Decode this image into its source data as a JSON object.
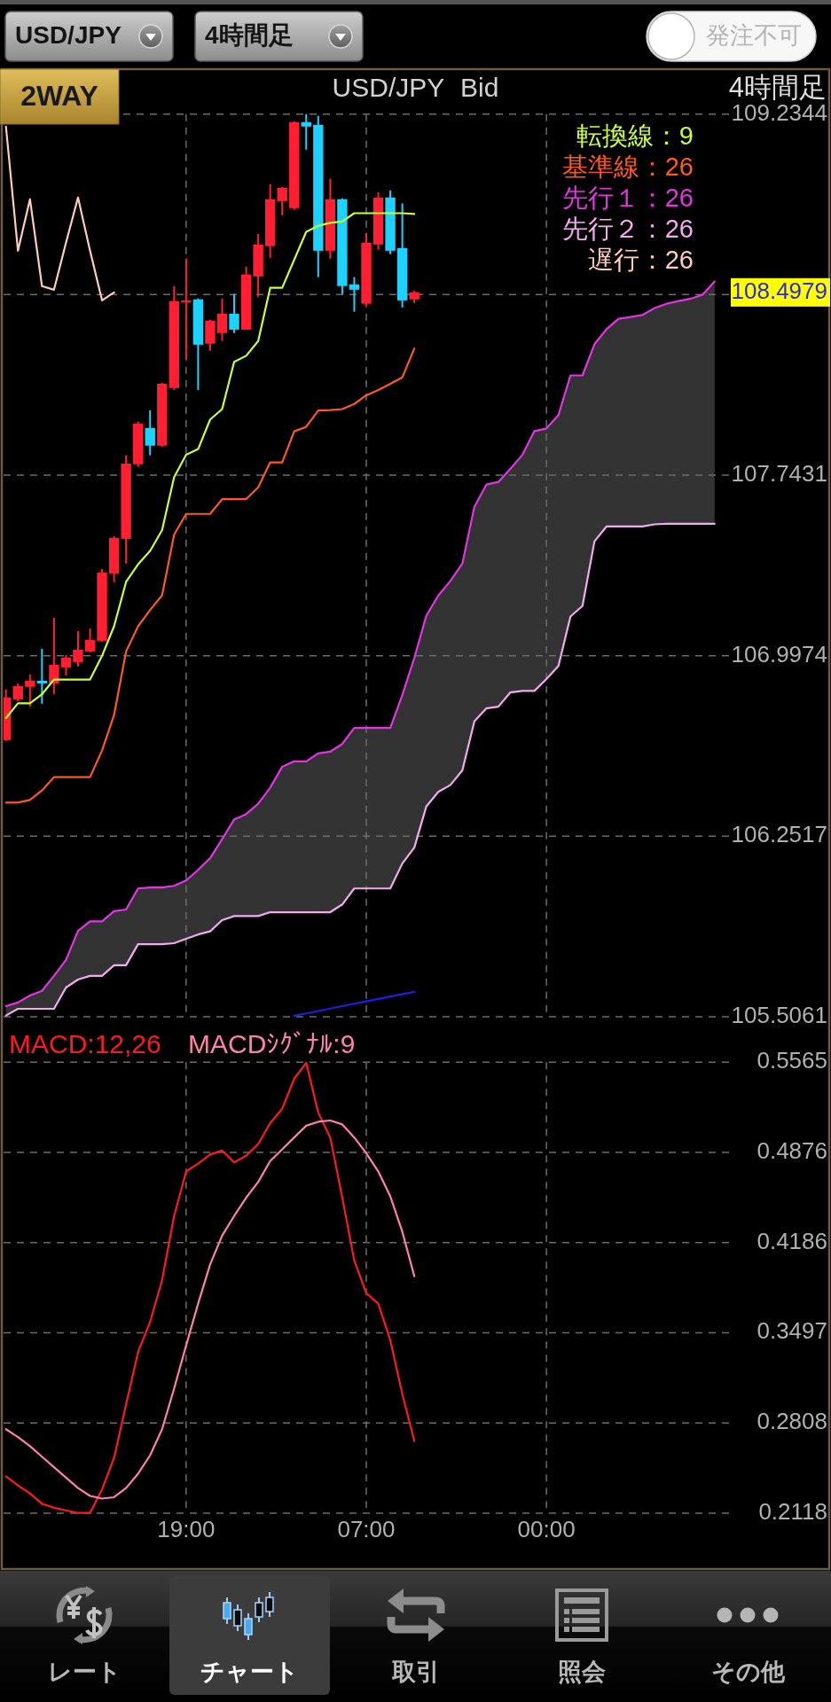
{
  "chart_data": [
    {
      "type": "other",
      "annotations": [
        "USD/JPY",
        "4時間足",
        "発注不可",
        "2WAY"
      ]
    },
    {
      "type": "candlestick",
      "title": "USD/JPY Bid",
      "subtitle": "4時間足",
      "categories": [
        null,
        null,
        null,
        null,
        null,
        null,
        null,
        null,
        null,
        null,
        null,
        null,
        null,
        null,
        null,
        null,
        null,
        null,
        null,
        null,
        null,
        null,
        null,
        null,
        null,
        null,
        null,
        null,
        null,
        null,
        null,
        null,
        null,
        null,
        null,
        null,
        null,
        null,
        null,
        null,
        null,
        null,
        null,
        null,
        null,
        null,
        null,
        null,
        null,
        null,
        null,
        null,
        null,
        null,
        null,
        null,
        null,
        null,
        null,
        null,
        null
      ],
      "ylim": [
        105.5061,
        109.2344
      ],
      "yticks": [
        105.5061,
        106.2517,
        106.9974,
        107.7431,
        {
          "value": 108.4887,
          "label": null
        },
        109.2344
      ],
      "grid": true,
      "legend": "top right",
      "ohlc": [
        [
          106.649,
          106.858,
          106.645,
          106.825
        ],
        [
          106.817,
          106.883,
          106.81,
          106.872
        ],
        [
          106.869,
          106.92,
          106.788,
          106.894
        ],
        [
          106.894,
          107.026,
          106.799,
          106.883
        ],
        [
          106.883,
          107.154,
          106.839,
          106.96
        ],
        [
          106.949,
          107.0,
          106.916,
          106.989
        ],
        [
          106.971,
          107.099,
          106.953,
          107.022
        ],
        [
          107.015,
          107.11,
          107.011,
          107.063
        ],
        [
          107.059,
          107.356,
          107.055,
          107.341
        ],
        [
          107.337,
          107.491,
          107.301,
          107.484
        ],
        [
          107.48,
          107.825,
          107.378,
          107.791
        ],
        [
          107.788,
          107.964,
          107.777,
          107.956
        ],
        [
          107.938,
          108.011,
          107.825,
          107.865
        ],
        [
          107.865,
          108.125,
          107.861,
          108.121
        ],
        [
          108.103,
          108.524,
          108.095,
          108.462
        ],
        [
          108.458,
          108.637,
          108.224,
          108.465
        ],
        [
          108.469,
          108.473,
          108.095,
          108.282
        ],
        [
          108.286,
          108.385,
          108.257,
          108.381
        ],
        [
          108.33,
          108.473,
          108.297,
          108.41
        ],
        [
          108.41,
          108.491,
          108.33,
          108.344
        ],
        [
          108.344,
          108.604,
          108.344,
          108.572
        ],
        [
          108.564,
          108.74,
          108.48,
          108.696
        ],
        [
          108.689,
          108.945,
          108.641,
          108.883
        ],
        [
          108.875,
          108.934,
          108.817,
          108.93
        ],
        [
          108.846,
          109.205,
          108.839,
          109.201
        ],
        [
          109.201,
          109.234,
          109.088,
          109.183
        ],
        [
          109.19,
          109.227,
          108.561,
          108.67
        ],
        [
          108.67,
          108.967,
          108.637,
          108.883
        ],
        [
          108.883,
          108.886,
          108.491,
          108.524
        ],
        [
          108.531,
          108.561,
          108.418,
          108.509
        ],
        [
          108.451,
          108.744,
          108.443,
          108.703
        ],
        [
          108.696,
          108.912,
          108.674,
          108.89
        ],
        [
          108.89,
          108.919,
          108.656,
          108.67
        ],
        [
          108.681,
          108.865,
          108.436,
          108.465
        ],
        [
          108.469,
          108.506,
          108.454,
          108.498
        ],
        null,
        null,
        null,
        null,
        null,
        null,
        null,
        null,
        null,
        null,
        null,
        null,
        null,
        null,
        null,
        null,
        null,
        null,
        null,
        null,
        null,
        null,
        null,
        null,
        null,
        null
      ],
      "colors": [
        "#ff1e32",
        "#ff1e32",
        "#ff1e32",
        "#1ed2ff",
        "#ff1e32",
        "#ff1e32",
        "#ff1e32",
        "#ff1e32",
        "#ff1e32",
        "#ff1e32",
        "#ff1e32",
        "#ff1e32",
        "#1ed2ff",
        "#ff1e32",
        "#ff1e32",
        "#ff1e32",
        "#1ed2ff",
        "#ff1e32",
        "#ff1e32",
        "#1ed2ff",
        "#ff1e32",
        "#ff1e32",
        "#ff1e32",
        "#ff1e32",
        "#ff1e32",
        "#1ed2ff",
        "#1ed2ff",
        "#ff1e32",
        "#1ed2ff",
        "#1ed2ff",
        "#ff1e32",
        "#ff1e32",
        "#1ed2ff",
        "#1ed2ff",
        "#ff1e32",
        null,
        null,
        null,
        null,
        null,
        null,
        null,
        null,
        null,
        null,
        null,
        null,
        null,
        null,
        null,
        null,
        null,
        null,
        null,
        null,
        null,
        null,
        null,
        null,
        null,
        null
      ],
      "series": [
        {
          "type": "line",
          "name": "転換線：9",
          "color": "#ccff33",
          "values": [
            106.74,
            106.801,
            106.801,
            106.838,
            106.899,
            106.899,
            106.899,
            106.899,
            106.997,
            107.119,
            107.302,
            107.375,
            107.43,
            107.516,
            107.735,
            107.827,
            107.851,
            107.973,
            108.016,
            108.211,
            108.236,
            108.297,
            108.517,
            108.517,
            108.633,
            108.748,
            108.773,
            108.785,
            108.791,
            108.825,
            108.825,
            108.825,
            108.825,
            108.825,
            108.822,
            null,
            null,
            null,
            null,
            null,
            null,
            null,
            null,
            null,
            null,
            null,
            null,
            null,
            null,
            null,
            null,
            null,
            null,
            null,
            null,
            null,
            null,
            null,
            null,
            null,
            null
          ]
        },
        {
          "type": "line",
          "name": "基準線：26",
          "color": "#ff5a1e",
          "values": [
            106.391,
            106.391,
            106.402,
            106.441,
            106.496,
            106.496,
            106.496,
            106.496,
            106.606,
            106.752,
            107.015,
            107.119,
            107.186,
            107.247,
            107.497,
            107.583,
            107.583,
            107.583,
            107.644,
            107.644,
            107.644,
            107.693,
            107.796,
            107.796,
            107.924,
            107.943,
            108.01,
            108.012,
            108.016,
            108.037,
            108.073,
            108.095,
            108.12,
            108.147,
            108.266,
            null,
            null,
            null,
            null,
            null,
            null,
            null,
            null,
            null,
            null,
            null,
            null,
            null,
            null,
            null,
            null,
            null,
            null,
            null,
            null,
            null,
            null,
            null,
            null,
            null,
            null
          ]
        },
        {
          "type": "line",
          "name": "先行１：26",
          "color": "#e633e6",
          "values": [
            105.55,
            105.565,
            105.594,
            105.613,
            105.675,
            105.741,
            105.861,
            105.9,
            105.9,
            105.942,
            105.949,
            106.036,
            106.04,
            106.04,
            106.047,
            106.069,
            106.113,
            106.161,
            106.24,
            106.321,
            106.343,
            106.386,
            106.452,
            106.539,
            106.561,
            106.561,
            106.594,
            106.601,
            106.633,
            106.699,
            106.699,
            106.699,
            106.699,
            106.835,
            106.988,
            107.163,
            107.246,
            107.306,
            107.378,
            107.612,
            107.704,
            107.715,
            107.77,
            107.827,
            107.925,
            107.936,
            107.991,
            108.155,
            108.155,
            108.284,
            108.346,
            108.389,
            108.396,
            108.405,
            108.433,
            108.451,
            108.462,
            108.472,
            108.488,
            108.543,
            null
          ],
          "lower": [
            105.511,
            105.539,
            105.539,
            105.539,
            105.539,
            105.627,
            105.66,
            105.675,
            105.675,
            105.719,
            105.719,
            105.806,
            105.806,
            105.806,
            105.81,
            105.828,
            105.846,
            105.859,
            105.905,
            105.922,
            105.922,
            105.922,
            105.938,
            105.938,
            105.938,
            105.938,
            105.938,
            105.938,
            105.97,
            106.036,
            106.036,
            106.036,
            106.036,
            106.139,
            106.205,
            106.375,
            106.435,
            106.463,
            106.524,
            106.726,
            106.78,
            106.787,
            106.846,
            106.852,
            106.852,
            106.901,
            106.955,
            107.159,
            107.203,
            107.47,
            107.531,
            107.531,
            107.531,
            107.531,
            107.54,
            107.542,
            107.542,
            107.542,
            107.542,
            107.542,
            null
          ],
          "upper": [
            105.55,
            105.565,
            105.594,
            105.613,
            105.675,
            105.741,
            105.861,
            105.9,
            105.9,
            105.942,
            105.949,
            106.036,
            106.04,
            106.04,
            106.047,
            106.069,
            106.113,
            106.161,
            106.24,
            106.321,
            106.343,
            106.386,
            106.452,
            106.539,
            106.561,
            106.561,
            106.594,
            106.601,
            106.633,
            106.699,
            106.699,
            106.699,
            106.699,
            106.835,
            106.988,
            107.163,
            107.246,
            107.306,
            107.378,
            107.612,
            107.704,
            107.715,
            107.77,
            107.827,
            107.925,
            107.936,
            107.991,
            108.155,
            108.155,
            108.284,
            108.346,
            108.389,
            108.396,
            108.405,
            108.433,
            108.451,
            108.462,
            108.472,
            108.488,
            108.543,
            null
          ]
        },
        {
          "type": "line",
          "name": "先行２：26",
          "color": "#f5aaf0",
          "values": [
            105.511,
            105.539,
            105.539,
            105.539,
            105.539,
            105.627,
            105.66,
            105.675,
            105.675,
            105.719,
            105.719,
            105.806,
            105.806,
            105.806,
            105.81,
            105.828,
            105.846,
            105.859,
            105.905,
            105.922,
            105.922,
            105.922,
            105.938,
            105.938,
            105.938,
            105.938,
            105.938,
            105.938,
            105.97,
            106.036,
            106.036,
            106.036,
            106.036,
            106.139,
            106.205,
            106.375,
            106.435,
            106.463,
            106.524,
            106.726,
            106.78,
            106.787,
            106.846,
            106.852,
            106.852,
            106.901,
            106.955,
            107.159,
            107.203,
            107.47,
            107.531,
            107.531,
            107.531,
            107.531,
            107.54,
            107.542,
            107.542,
            107.542,
            107.542,
            107.542,
            null
          ]
        },
        {
          "type": "line",
          "name": "遅行：26",
          "color": "#ffcdbe",
          "values": [
            109.183,
            108.67,
            108.883,
            108.524,
            108.509,
            108.703,
            108.89,
            108.67,
            108.465,
            108.498,
            null,
            null,
            null,
            null,
            null,
            null,
            null,
            null,
            null,
            null,
            null,
            null,
            null,
            null,
            null,
            null,
            null,
            null,
            null,
            null,
            null,
            null,
            null,
            null,
            null,
            null,
            null,
            null,
            null,
            null,
            null,
            null,
            null,
            null,
            null,
            null,
            null,
            null,
            null,
            null,
            null,
            null,
            null,
            null,
            null,
            null,
            null,
            null,
            null,
            null,
            null
          ]
        },
        {
          "type": "line",
          "color": "#1e1ee6",
          "values": [
            null,
            null,
            null,
            null,
            null,
            null,
            null,
            null,
            null,
            null,
            null,
            null,
            null,
            null,
            null,
            null,
            null,
            null,
            null,
            null,
            null,
            null,
            null,
            null,
            105.51,
            105.52,
            105.53,
            105.54,
            105.55,
            105.56,
            105.57,
            105.58,
            105.59,
            105.599,
            105.609,
            null,
            null,
            null,
            null,
            null,
            null,
            null,
            null,
            null,
            null,
            null,
            null,
            null,
            null,
            null,
            null,
            null,
            null,
            null,
            null,
            null,
            null,
            null,
            null,
            null,
            null
          ]
        }
      ],
      "annotations": [
        "108.4979"
      ]
    },
    {
      "type": "line",
      "categories": [
        null,
        null,
        null,
        null,
        null,
        null,
        null,
        null,
        null,
        null,
        null,
        null,
        null,
        null,
        null,
        "19:00",
        null,
        null,
        null,
        null,
        null,
        null,
        null,
        null,
        null,
        null,
        null,
        null,
        null,
        null,
        "07:00",
        null,
        null,
        null,
        null,
        null,
        null,
        null,
        null,
        null,
        null,
        null,
        null,
        null,
        null,
        "00:00",
        null,
        null,
        null,
        null,
        null,
        null,
        null,
        null,
        null,
        null,
        null,
        null,
        null,
        null,
        null
      ],
      "ylim": [
        0.2118,
        0.5565
      ],
      "yticks": [
        0.2118,
        0.2808,
        0.3497,
        0.4186,
        0.4876,
        0.5565
      ],
      "grid": true,
      "legend": "top left",
      "series": [
        {
          "name": "MACD:12,26",
          "color": "#ff1a1a",
          "values": [
            0.24,
            0.233,
            0.227,
            0.219,
            0.216,
            0.214,
            0.212,
            0.212,
            0.23,
            0.254,
            0.295,
            0.335,
            0.358,
            0.39,
            0.439,
            0.473,
            0.479,
            0.486,
            0.489,
            0.48,
            0.485,
            0.494,
            0.51,
            0.521,
            0.544,
            0.556,
            0.518,
            0.499,
            0.453,
            0.405,
            0.38,
            0.372,
            0.344,
            0.303,
            0.267,
            null,
            null,
            null,
            null,
            null,
            null,
            null,
            null,
            null,
            null,
            null,
            null,
            null,
            null,
            null,
            null,
            null,
            null,
            null,
            null,
            null,
            null,
            null,
            null,
            null,
            null
          ]
        },
        {
          "name": "MACDｼｸﾞﾅﾙ:9",
          "color": "#ff80aa",
          "values": [
            0.276,
            0.27,
            0.263,
            0.255,
            0.247,
            0.239,
            0.231,
            0.225,
            0.223,
            0.224,
            0.231,
            0.242,
            0.256,
            0.276,
            0.307,
            0.34,
            0.372,
            0.402,
            0.424,
            0.439,
            0.453,
            0.465,
            0.481,
            0.49,
            0.499,
            0.508,
            0.511,
            0.512,
            0.509,
            0.499,
            0.487,
            0.473,
            0.454,
            0.427,
            0.393,
            null,
            null,
            null,
            null,
            null,
            null,
            null,
            null,
            null,
            null,
            null,
            null,
            null,
            null,
            null,
            null,
            null,
            null,
            null,
            null,
            null,
            null,
            null,
            null,
            null,
            null
          ]
        }
      ]
    },
    {
      "type": "other",
      "annotations": [
        "レート",
        "チャート",
        "取引",
        "照会",
        "その他"
      ]
    }
  ]
}
